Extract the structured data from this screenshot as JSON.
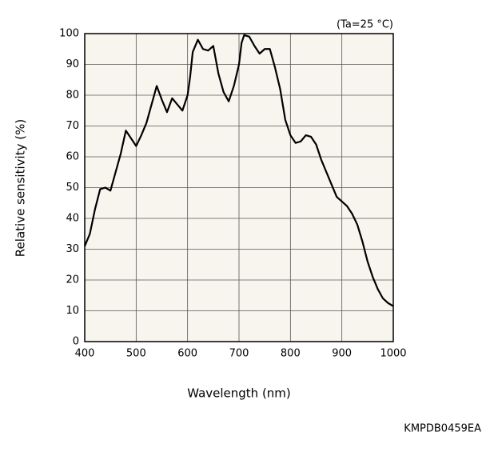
{
  "chart_data": {
    "type": "line",
    "xlabel": "Wavelength (nm)",
    "ylabel": "Relative sensitivity (%)",
    "annotations": [
      "(Ta=25 °C)",
      "KMPDB0459EA"
    ],
    "x": [
      400,
      410,
      420,
      430,
      440,
      450,
      460,
      470,
      480,
      490,
      500,
      510,
      520,
      530,
      540,
      550,
      560,
      570,
      580,
      590,
      600,
      605,
      610,
      620,
      630,
      640,
      650,
      660,
      670,
      680,
      690,
      700,
      705,
      710,
      720,
      730,
      740,
      750,
      760,
      770,
      780,
      790,
      800,
      810,
      820,
      830,
      840,
      850,
      860,
      870,
      880,
      890,
      900,
      910,
      920,
      930,
      940,
      950,
      960,
      970,
      980,
      990,
      1000
    ],
    "values": [
      31,
      35,
      43,
      49.5,
      50,
      49,
      55,
      61,
      68.5,
      66,
      63.5,
      67,
      71,
      77,
      83,
      78.5,
      74.5,
      79,
      77,
      75,
      80,
      86,
      94,
      98,
      95,
      94.5,
      96,
      87,
      81,
      78,
      83,
      90,
      97,
      99.5,
      99,
      96,
      93.5,
      95,
      95,
      89,
      82,
      72,
      67,
      64.5,
      65,
      67,
      66.5,
      64,
      59,
      55,
      51,
      47,
      45.5,
      44,
      41.5,
      38,
      32.5,
      26,
      21,
      17,
      14,
      12.5,
      11.5
    ],
    "color": "#000000",
    "xlim": [
      400,
      1000
    ],
    "xticks": [
      400,
      500,
      600,
      700,
      800,
      900,
      1000
    ],
    "ylim": [
      0,
      100
    ],
    "yticks": [
      0,
      10,
      20,
      30,
      40,
      50,
      60,
      70,
      80,
      90,
      100
    ],
    "grid": true
  }
}
